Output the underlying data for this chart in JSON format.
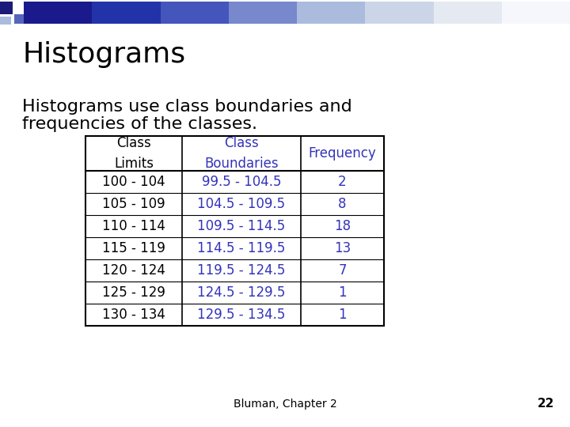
{
  "title": "Histograms",
  "subtitle_line1": "Histograms use class boundaries and",
  "subtitle_line2": "frequencies of the classes.",
  "background_color": "#ffffff",
  "title_color": "#000000",
  "subtitle_color": "#000000",
  "title_fontsize": 26,
  "subtitle_fontsize": 16,
  "header_col1": "Class\nLimits",
  "header_col2": "Class\nBoundaries",
  "header_col3": "Frequency",
  "header_col1_color": "#000000",
  "header_col2_color": "#3333bb",
  "header_col3_color": "#3333bb",
  "col1_color": "#000000",
  "col2_color": "#3333bb",
  "col3_color": "#3333bb",
  "class_limits": [
    "100 - 104",
    "105 - 109",
    "110 - 114",
    "115 - 119",
    "120 - 124",
    "125 - 129",
    "130 - 134"
  ],
  "class_boundaries": [
    "99.5 - 104.5",
    "104.5 - 109.5",
    "109.5 - 114.5",
    "114.5 - 119.5",
    "119.5 - 124.5",
    "124.5 - 129.5",
    "129.5 - 134.5"
  ],
  "frequencies": [
    "2",
    "8",
    "18",
    "13",
    "7",
    "1",
    "1"
  ],
  "footer_text": "Bluman, Chapter 2",
  "footer_page": "22",
  "footer_color": "#000000",
  "footer_fontsize": 10,
  "table_border_color": "#000000",
  "table_font_size": 12,
  "header_font_size": 12,
  "slide_bg": "#ffffff",
  "grad_colors": [
    "#1a1a8c",
    "#2233aa",
    "#4455bb",
    "#7788cc",
    "#aabbdd",
    "#ccd5e8",
    "#e5eaf2",
    "#f5f7fc"
  ],
  "deco_dark": "#1a1a7a",
  "deco_mid": "#5566bb",
  "deco_light": "#aabbdd"
}
